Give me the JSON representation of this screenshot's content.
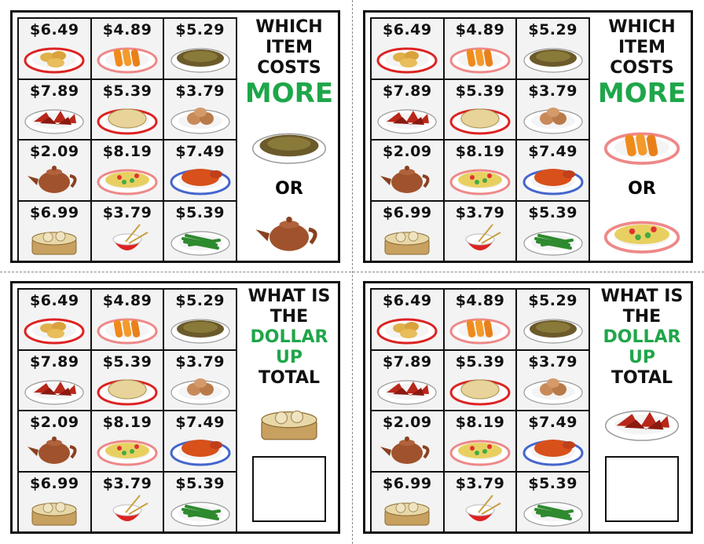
{
  "menu": [
    {
      "price": "$6.49",
      "icon": "fried-wontons"
    },
    {
      "price": "$4.89",
      "icon": "spring-rolls"
    },
    {
      "price": "$5.29",
      "icon": "chow-mein"
    },
    {
      "price": "$7.89",
      "icon": "chili-chicken"
    },
    {
      "price": "$5.39",
      "icon": "steamed-bun"
    },
    {
      "price": "$3.79",
      "icon": "tea-eggs"
    },
    {
      "price": "$2.09",
      "icon": "teapot"
    },
    {
      "price": "$8.19",
      "icon": "stir-fry"
    },
    {
      "price": "$7.49",
      "icon": "roast-duck"
    },
    {
      "price": "$6.99",
      "icon": "dumpling-steamer"
    },
    {
      "price": "$3.79",
      "icon": "rice-bowl"
    },
    {
      "price": "$5.39",
      "icon": "green-beans"
    }
  ],
  "cards": [
    {
      "type": "compare",
      "lines": [
        "WHICH",
        "ITEM",
        "COSTS"
      ],
      "highlight": [
        "MORE"
      ],
      "or": "OR",
      "items": [
        "chow-mein",
        "teapot"
      ]
    },
    {
      "type": "compare",
      "lines": [
        "WHICH",
        "ITEM",
        "COSTS"
      ],
      "highlight": [
        "MORE"
      ],
      "or": "OR",
      "items": [
        "spring-rolls",
        "stir-fry"
      ]
    },
    {
      "type": "total",
      "lines": [
        "WHAT IS",
        "THE"
      ],
      "highlight": [
        "DOLLAR",
        "UP"
      ],
      "after": "TOTAL",
      "items": [
        "dumpling-steamer"
      ]
    },
    {
      "type": "total",
      "lines": [
        "WHAT IS",
        "THE"
      ],
      "highlight": [
        "DOLLAR",
        "UP"
      ],
      "after": "TOTAL",
      "items": [
        "chili-chicken"
      ]
    }
  ],
  "colors": {
    "green": "#1fa64a"
  }
}
